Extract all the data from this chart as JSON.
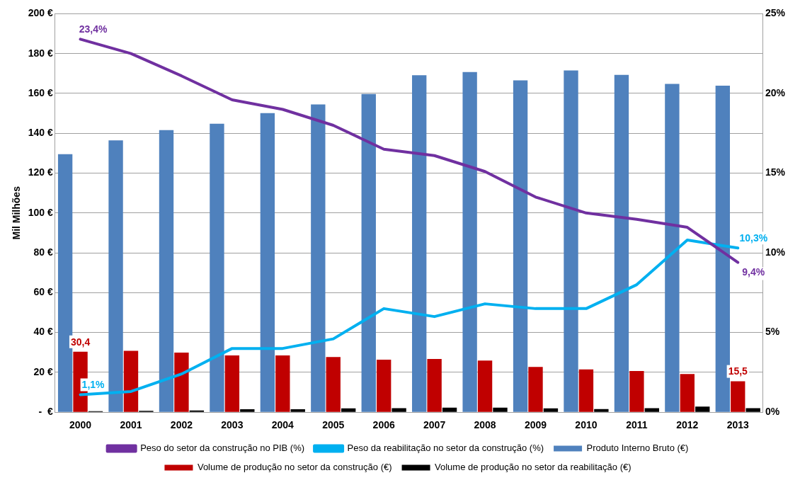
{
  "chart_data": {
    "type": "bar",
    "ylabel": "Mil Milhões",
    "categories": [
      "2000",
      "2001",
      "2002",
      "2003",
      "2004",
      "2005",
      "2006",
      "2007",
      "2008",
      "2009",
      "2010",
      "2011",
      "2012",
      "2013"
    ],
    "series": [
      {
        "name": "Produto Interno Bruto (€)",
        "color": "#4f81bd",
        "values": [
          129.5,
          136.4,
          141.6,
          144.8,
          150.1,
          154.5,
          159.7,
          169.1,
          170.7,
          166.6,
          171.5,
          169.3,
          164.8,
          163.9
        ]
      },
      {
        "name": "Volume de produção no setor da construção (€)",
        "color": "#c00000",
        "values": [
          30.4,
          30.8,
          29.9,
          28.5,
          28.5,
          27.7,
          26.4,
          26.7,
          25.9,
          22.7,
          21.5,
          20.7,
          19.2,
          15.5
        ],
        "value_labels": [
          "30,4",
          null,
          null,
          null,
          null,
          null,
          null,
          null,
          null,
          null,
          null,
          null,
          null,
          "15,5"
        ]
      },
      {
        "name": "Volume de produção no setor da reabilitação (€)",
        "color": "#000000",
        "values": [
          0.5,
          0.7,
          0.9,
          1.5,
          1.5,
          1.9,
          2.0,
          2.3,
          2.3,
          1.9,
          1.6,
          2.0,
          2.8,
          2.0
        ]
      },
      {
        "name": "Peso do setor da construção no PIB (%)",
        "type": "line",
        "axis": "y2",
        "color": "#7030a0",
        "values": [
          23.4,
          22.5,
          21.1,
          19.6,
          19.0,
          18.0,
          16.5,
          16.1,
          15.1,
          13.5,
          12.5,
          12.1,
          11.6,
          9.4
        ],
        "value_labels": [
          "23,4%",
          null,
          null,
          null,
          null,
          null,
          null,
          null,
          null,
          null,
          null,
          null,
          null,
          "9,4%"
        ]
      },
      {
        "name": "Peso da reabilitação no setor da construção (%)",
        "type": "line",
        "axis": "y2",
        "color": "#00b0f0",
        "values": [
          1.1,
          1.3,
          2.4,
          4.0,
          4.0,
          4.6,
          6.5,
          6.0,
          6.8,
          6.5,
          6.5,
          8.0,
          10.8,
          10.3
        ],
        "value_labels": [
          "1,1%",
          null,
          null,
          null,
          null,
          null,
          null,
          null,
          null,
          null,
          null,
          null,
          null,
          "10,3%"
        ]
      }
    ],
    "ylim": [
      0,
      200
    ],
    "yticks": [
      {
        "value": 0,
        "label": "-  €"
      },
      {
        "value": 20,
        "label": "20 €"
      },
      {
        "value": 40,
        "label": "40 €"
      },
      {
        "value": 60,
        "label": "60 €"
      },
      {
        "value": 80,
        "label": "80 €"
      },
      {
        "value": 100,
        "label": "100 €"
      },
      {
        "value": 120,
        "label": "120 €"
      },
      {
        "value": 140,
        "label": "140 €"
      },
      {
        "value": 160,
        "label": "160 €"
      },
      {
        "value": 180,
        "label": "180 €"
      },
      {
        "value": 200,
        "label": "200 €"
      }
    ],
    "y2lim": [
      0,
      25
    ],
    "y2ticks": [
      {
        "value": 0,
        "label": "0%"
      },
      {
        "value": 5,
        "label": "5%"
      },
      {
        "value": 10,
        "label": "10%"
      },
      {
        "value": 15,
        "label": "15%"
      },
      {
        "value": 20,
        "label": "20%"
      },
      {
        "value": 25,
        "label": "25%"
      }
    ],
    "grid": "y",
    "legend": "bottom",
    "marker": "none",
    "line_style": "solid"
  }
}
